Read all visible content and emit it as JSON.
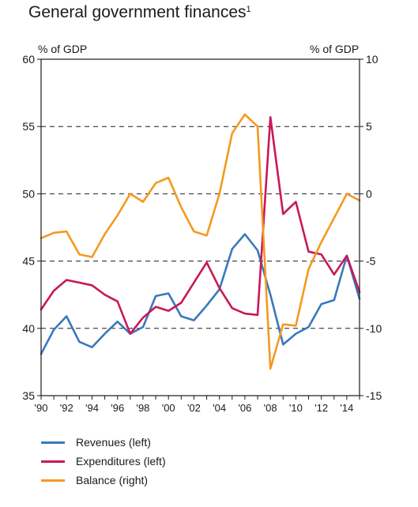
{
  "chart_data": {
    "type": "line",
    "title": "General government finances",
    "title_footnote": "1",
    "ylabel_left": "% of GDP",
    "ylabel_right": "% of GDP",
    "ylim_left": [
      35,
      60
    ],
    "ylim_right": [
      -15,
      10
    ],
    "yticks_left": [
      35,
      40,
      45,
      50,
      55,
      60
    ],
    "yticks_right": [
      -15,
      -10,
      -5,
      0,
      5,
      10
    ],
    "ytick_labels_left": [
      "35",
      "40",
      "45",
      "50",
      "55",
      "60"
    ],
    "ytick_labels_right": [
      "-15",
      "-10",
      "-5",
      "0",
      "5",
      "10"
    ],
    "xlim": [
      1990,
      2015
    ],
    "xtick_labels": [
      {
        "x": 1990,
        "label": "'90"
      },
      {
        "x": 1992,
        "label": "'92"
      },
      {
        "x": 1994,
        "label": "'94"
      },
      {
        "x": 1996,
        "label": "'96"
      },
      {
        "x": 1998,
        "label": "'98"
      },
      {
        "x": 2000,
        "label": "'00"
      },
      {
        "x": 2002,
        "label": "'02"
      },
      {
        "x": 2004,
        "label": "'04"
      },
      {
        "x": 2006,
        "label": "'06"
      },
      {
        "x": 2008,
        "label": "'08"
      },
      {
        "x": 2010,
        "label": "'10"
      },
      {
        "x": 2012,
        "label": "'12"
      },
      {
        "x": 2014,
        "label": "'14"
      }
    ],
    "gridlines_dashed_left_values": [
      40,
      45,
      50,
      55
    ],
    "legend_position": "bottom-left",
    "series": [
      {
        "name": "Revenues (left)",
        "axis": "left",
        "color": "#3a78bc",
        "points": [
          [
            1990,
            38.1
          ],
          [
            1991,
            39.9
          ],
          [
            1992,
            40.9
          ],
          [
            1993,
            39.0
          ],
          [
            1994,
            38.6
          ],
          [
            1995,
            39.6
          ],
          [
            1996,
            40.5
          ],
          [
            1997,
            39.6
          ],
          [
            1998,
            40.1
          ],
          [
            1999,
            42.4
          ],
          [
            2000,
            42.6
          ],
          [
            2001,
            40.9
          ],
          [
            2002,
            40.6
          ],
          [
            2003,
            41.7
          ],
          [
            2004,
            42.9
          ],
          [
            2005,
            45.9
          ],
          [
            2006,
            47.0
          ],
          [
            2007,
            45.8
          ],
          [
            2008,
            42.5
          ],
          [
            2009,
            38.8
          ],
          [
            2010,
            39.6
          ],
          [
            2011,
            40.1
          ],
          [
            2012,
            41.8
          ],
          [
            2013,
            42.1
          ],
          [
            2014,
            45.4
          ],
          [
            2015,
            42.2
          ]
        ]
      },
      {
        "name": "Expenditures (left)",
        "axis": "left",
        "color": "#c8185a",
        "points": [
          [
            1990,
            41.4
          ],
          [
            1991,
            42.8
          ],
          [
            1992,
            43.6
          ],
          [
            1993,
            43.4
          ],
          [
            1994,
            43.2
          ],
          [
            1995,
            42.5
          ],
          [
            1996,
            42.0
          ],
          [
            1997,
            39.6
          ],
          [
            1998,
            40.8
          ],
          [
            1999,
            41.6
          ],
          [
            2000,
            41.3
          ],
          [
            2001,
            41.9
          ],
          [
            2002,
            43.4
          ],
          [
            2003,
            44.9
          ],
          [
            2004,
            43.0
          ],
          [
            2005,
            41.5
          ],
          [
            2006,
            41.1
          ],
          [
            2007,
            41.0
          ],
          [
            2008,
            55.7
          ],
          [
            2009,
            48.5
          ],
          [
            2010,
            49.4
          ],
          [
            2011,
            45.7
          ],
          [
            2012,
            45.5
          ],
          [
            2013,
            44.0
          ],
          [
            2014,
            45.4
          ],
          [
            2015,
            42.7
          ]
        ]
      },
      {
        "name": "Balance (right)",
        "axis": "right",
        "color": "#f39a1f",
        "points": [
          [
            1990,
            -3.3
          ],
          [
            1991,
            -2.9
          ],
          [
            1992,
            -2.8
          ],
          [
            1993,
            -4.5
          ],
          [
            1994,
            -4.7
          ],
          [
            1995,
            -3.0
          ],
          [
            1996,
            -1.6
          ],
          [
            1997,
            0.0
          ],
          [
            1998,
            -0.6
          ],
          [
            1999,
            0.8
          ],
          [
            2000,
            1.2
          ],
          [
            2001,
            -1.0
          ],
          [
            2002,
            -2.8
          ],
          [
            2003,
            -3.1
          ],
          [
            2004,
            0.0
          ],
          [
            2005,
            4.5
          ],
          [
            2006,
            5.9
          ],
          [
            2007,
            5.0
          ],
          [
            2008,
            -13.0
          ],
          [
            2009,
            -9.7
          ],
          [
            2010,
            -9.8
          ],
          [
            2011,
            -5.6
          ],
          [
            2012,
            -3.6
          ],
          [
            2013,
            -1.8
          ],
          [
            2014,
            0.0
          ],
          [
            2015,
            -0.5
          ]
        ]
      }
    ]
  }
}
